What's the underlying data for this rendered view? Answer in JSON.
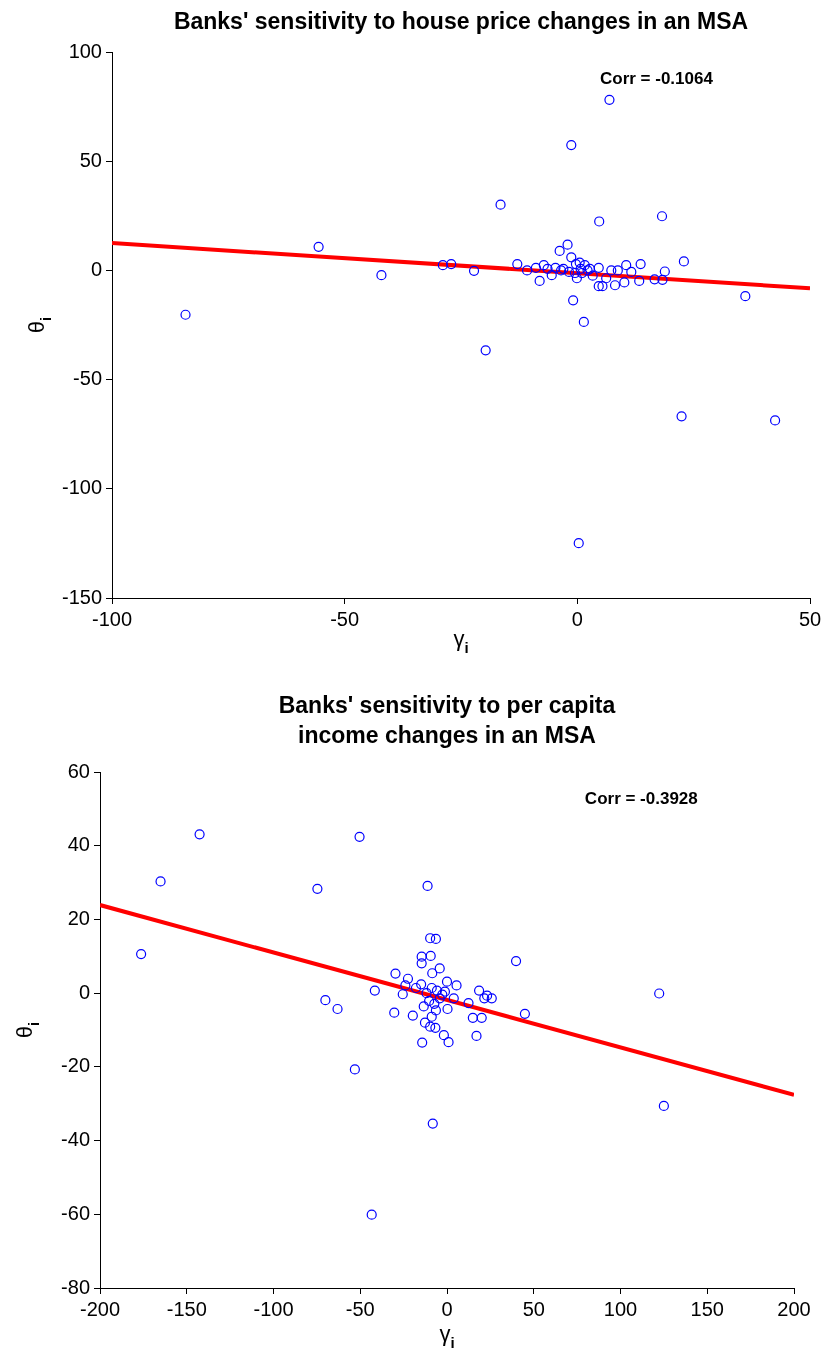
{
  "chart_data": [
    {
      "type": "scatter",
      "title": "Banks' sensitivity to house price changes in an MSA",
      "xlabel": "γ$_{i}$",
      "ylabel": "θ$_{i}$",
      "annotations": [
        "Corr = -0.1064"
      ],
      "xlim": [
        -100,
        50
      ],
      "xticks": [
        -100,
        -50,
        0,
        50
      ],
      "ylim": [
        -150,
        100
      ],
      "yticks": [
        -150,
        -100,
        -50,
        0,
        50,
        100
      ],
      "series": [
        {
          "type": "scatter",
          "color": "#0000ff",
          "marker": "circle",
          "x": [
            -55.6,
            -84.2,
            -42.1,
            -28.9,
            -27.1,
            -22.2,
            -16.5,
            -19.7,
            -12.9,
            -10.8,
            -8.9,
            -8.1,
            -7.2,
            -5.5,
            -3.8,
            -2.1,
            -1.3,
            -1.3,
            -0.9,
            1.4,
            0.3,
            6.9,
            4.7,
            18.2,
            22.9,
            22.4,
            42.5,
            36.1,
            18.8,
            18.3,
            16.6,
            13.6,
            13.3,
            10.5,
            10.1,
            11.6,
            8.1,
            7.3,
            5.4,
            4.6,
            4.6,
            6.2,
            -6.4,
            -4.7,
            -3.0,
            -0.3,
            0.5,
            1.6,
            2.7,
            -0.1,
            -0.5,
            1.0,
            3.3,
            -1.8,
            -3.5,
            0.7,
            2.2,
            8.7
          ],
          "values": [
            10.8,
            -20.3,
            -2.2,
            2.4,
            2.9,
            -0.2,
            30.1,
            -36.6,
            2.9,
            0,
            1.2,
            -4.8,
            2.4,
            -2.2,
            8.9,
            11.8,
            6.0,
            57.4,
            -13.7,
            -23.6,
            -124.9,
            78.1,
            22.4,
            24.8,
            4.1,
            -66.8,
            -68.7,
            -11.8,
            -0.5,
            -4.3,
            -4.1,
            2.9,
            -4.8,
            2.4,
            -5.5,
            -0.7,
            -6.8,
            0,
            -7.2,
            -7.2,
            1.2,
            -3.6,
            0.7,
            1.2,
            0.7,
            2.9,
            3.6,
            2.4,
            0.7,
            -3.6,
            -1.2,
            -1.2,
            -2.4,
            -0.7,
            0,
            0.7,
            0,
            0
          ]
        },
        {
          "type": "line",
          "color": "#ff0000",
          "marker": "none",
          "x": [
            -100,
            50
          ],
          "values": [
            12.5,
            -8.2
          ]
        }
      ]
    },
    {
      "type": "scatter",
      "title": "Banks' sensitivity to per capita income changes in an MSA",
      "xlabel": "γ$_{i}$",
      "ylabel": "θ$_{i}$",
      "annotations": [
        "Corr = -0.3928"
      ],
      "xlim": [
        -200,
        200
      ],
      "xticks": [
        -200,
        -150,
        -100,
        -50,
        0,
        50,
        100,
        150,
        200
      ],
      "ylim": [
        -80,
        60
      ],
      "yticks": [
        -80,
        -60,
        -40,
        -20,
        0,
        20,
        40,
        60
      ],
      "series": [
        {
          "type": "scatter",
          "color": "#0000ff",
          "marker": "circle",
          "x": [
            -176.3,
            -165.1,
            -142.6,
            -74.7,
            -50.4,
            -70.1,
            -63.1,
            -41.6,
            -53.1,
            -43.4,
            -11.2,
            -9.7,
            -6.4,
            -14.6,
            -9.4,
            -14.6,
            -8.5,
            -4.2,
            -29.7,
            -30.4,
            -22.5,
            -25.5,
            -19.7,
            -14.3,
            -12.7,
            -9.7,
            -6.7,
            -1.8,
            0.9,
            -8.2,
            39.8,
            44.9,
            17.0,
            14.9,
            20.0,
            12.4,
            18.5,
            21.5,
            23.1,
            25.8,
            5.5,
            0,
            0.3,
            -8.8,
            122.3,
            125.0,
            -14.9,
            -17.9,
            -11.8,
            -8.8,
            -5.8,
            -2.7,
            -10.3,
            -7.3,
            -4.2,
            -1.2,
            -13.4,
            -6.4,
            3.9,
            -24.0
          ],
          "values": [
            10.6,
            30.3,
            43.1,
            28.3,
            42.4,
            -1.9,
            -4.3,
            0.7,
            -20.7,
            -60.1,
            29.1,
            14.9,
            14.7,
            9.9,
            10.1,
            8.1,
            5.4,
            6.7,
            5.3,
            -5.3,
            3.9,
            -0.3,
            -6.1,
            -13.4,
            -8.0,
            -9.1,
            -9.4,
            -11.4,
            -13.3,
            -35.4,
            8.7,
            -5.6,
            -11.6,
            -6.7,
            -6.7,
            -2.7,
            0.7,
            -1.4,
            -0.7,
            -1.4,
            2.1,
            3.1,
            -4.3,
            -6.4,
            -0.1,
            -30.6,
            2.4,
            1.4,
            0,
            1.4,
            0.7,
            -0.4,
            -2.1,
            -2.9,
            -1.4,
            0.4,
            -3.6,
            -4.7,
            -1.4,
            2.1
          ]
        },
        {
          "type": "line",
          "color": "#ff0000",
          "marker": "none",
          "x": [
            -200,
            200
          ],
          "values": [
            23.9,
            -27.6
          ]
        }
      ]
    }
  ]
}
